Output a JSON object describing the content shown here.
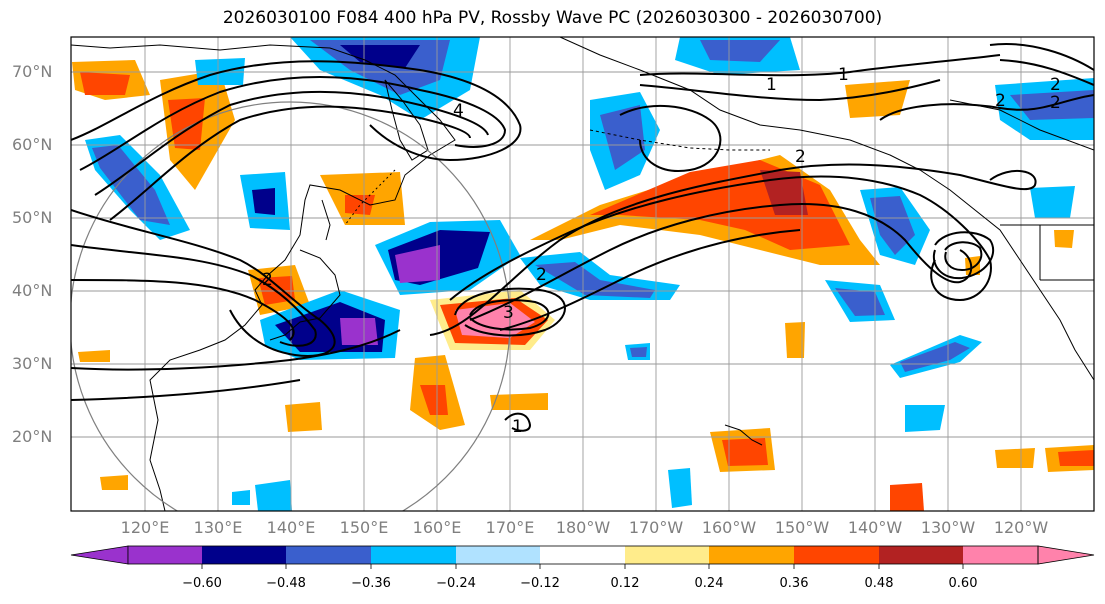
{
  "title": "2026030100 F084 400 hPa PV, Rossby Wave PC (2026030300 - 2026030700)",
  "lat_labels": [
    "70°N",
    "60°N",
    "50°N",
    "40°N",
    "30°N",
    "20°N"
  ],
  "lon_labels": [
    "120°E",
    "130°E",
    "140°E",
    "150°E",
    "160°E",
    "170°E",
    "180°W",
    "170°W",
    "160°W",
    "150°W",
    "140°W",
    "130°W",
    "120°W"
  ],
  "contour_labels": [
    "1",
    "1",
    "2",
    "2",
    "2",
    "2",
    "2",
    "3",
    "4",
    "1",
    "2"
  ],
  "colorbar": {
    "ticks": [
      "−0.60",
      "−0.48",
      "−0.36",
      "−0.24",
      "−0.12",
      "0.12",
      "0.24",
      "0.36",
      "0.48",
      "0.60"
    ],
    "colors": [
      "#9a32cd",
      "#00008b",
      "#3a5fcd",
      "#00bfff",
      "#b0e2ff",
      "#ffffff",
      "#ffec8b",
      "#ffa500",
      "#ff4500",
      "#b22222",
      "#ff82ab"
    ]
  }
}
